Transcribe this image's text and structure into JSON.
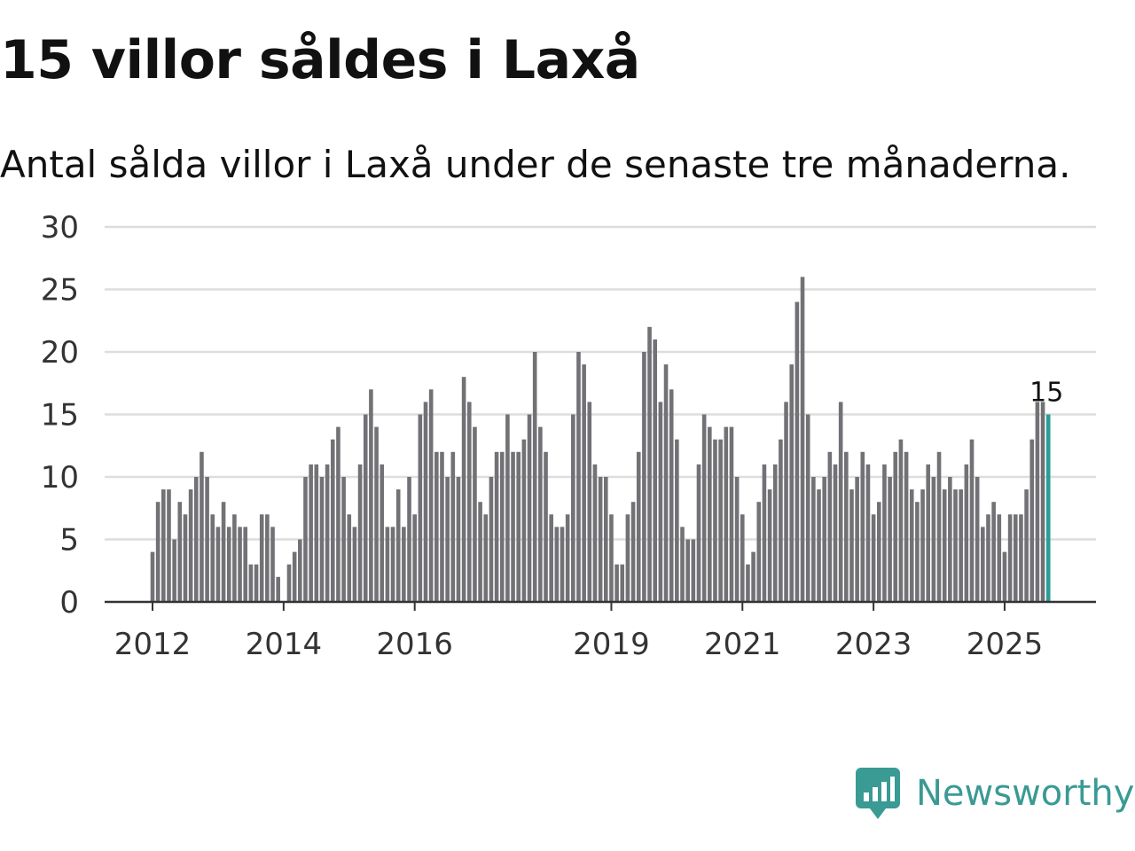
{
  "title": "15 villor såldes i Laxå",
  "subtitle": "Antal sålda villor i Laxå under de senaste tre månaderna.",
  "brand": {
    "name": "Newsworthy",
    "logo_icon": "bar-chart-speech-bubble-icon"
  },
  "colors": {
    "bar": "#727276",
    "highlight": "#2a9d96",
    "grid": "#dddddd",
    "axis": "#333333",
    "brand": "#3a9a94"
  },
  "chart_data": {
    "type": "bar",
    "title": "15 villor såldes i Laxå",
    "xlabel": "",
    "ylabel": "",
    "ylim": [
      0,
      30
    ],
    "yticks": [
      0,
      5,
      10,
      15,
      20,
      25,
      30
    ],
    "start_month": "2012-01",
    "x_ticks": [
      {
        "label": "2012",
        "index": 0
      },
      {
        "label": "2014",
        "index": 24
      },
      {
        "label": "2016",
        "index": 48
      },
      {
        "label": "2019",
        "index": 84
      },
      {
        "label": "2021",
        "index": 108
      },
      {
        "label": "2023",
        "index": 132
      },
      {
        "label": "2025",
        "index": 156
      }
    ],
    "values": [
      4,
      8,
      9,
      9,
      5,
      8,
      7,
      9,
      10,
      12,
      10,
      7,
      6,
      8,
      6,
      7,
      6,
      6,
      3,
      3,
      7,
      7,
      6,
      2,
      0,
      3,
      4,
      5,
      10,
      11,
      11,
      10,
      11,
      13,
      14,
      10,
      7,
      6,
      11,
      15,
      17,
      14,
      11,
      6,
      6,
      9,
      6,
      10,
      7,
      15,
      16,
      17,
      12,
      12,
      10,
      12,
      10,
      18,
      16,
      14,
      8,
      7,
      10,
      12,
      12,
      15,
      12,
      12,
      13,
      15,
      20,
      14,
      12,
      7,
      6,
      6,
      7,
      15,
      20,
      19,
      16,
      11,
      10,
      10,
      7,
      3,
      3,
      7,
      8,
      12,
      20,
      22,
      21,
      16,
      19,
      17,
      13,
      6,
      5,
      5,
      11,
      15,
      14,
      13,
      13,
      14,
      14,
      10,
      7,
      3,
      4,
      8,
      11,
      9,
      11,
      13,
      16,
      19,
      24,
      26,
      15,
      10,
      9,
      10,
      12,
      11,
      16,
      12,
      9,
      10,
      12,
      11,
      7,
      8,
      11,
      10,
      12,
      13,
      12,
      9,
      8,
      9,
      11,
      10,
      12,
      9,
      10,
      9,
      9,
      11,
      13,
      10,
      6,
      7,
      8,
      7,
      4,
      7,
      7,
      7,
      9,
      13,
      16,
      16,
      15
    ],
    "highlight_index": 164,
    "highlight_label": "15"
  }
}
